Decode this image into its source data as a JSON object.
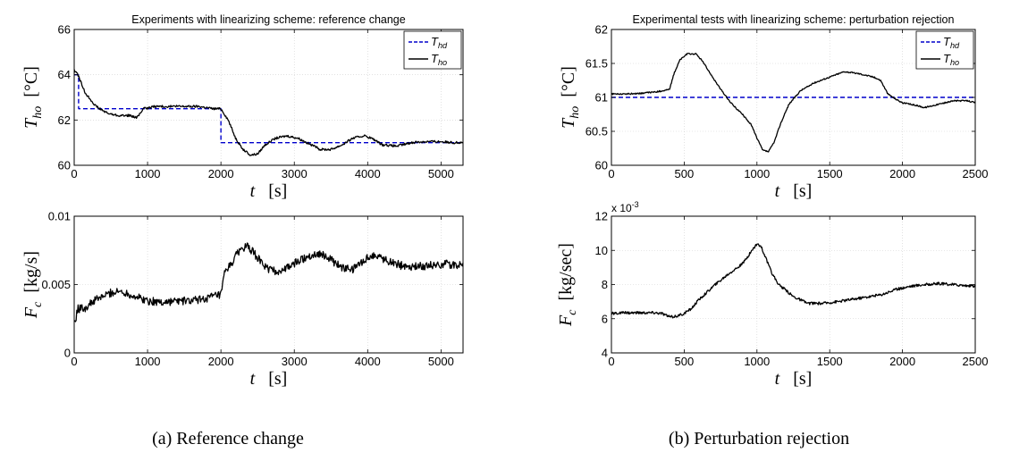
{
  "captions": {
    "a": "(a) Reference change",
    "b": "(b) Perturbation rejection"
  },
  "colors": {
    "reference": "#0000cc",
    "measured": "#000000",
    "axis": "#000000",
    "grid": "#cfcfcf",
    "background": "#ffffff"
  },
  "chart_data": [
    {
      "id": "a-top",
      "type": "line",
      "title": "Experiments with linearizing scheme: reference change",
      "xlabel": "t   [s]",
      "ylabel": "T_ho   [°C]",
      "xlim": [
        0,
        5300
      ],
      "ylim": [
        60,
        66
      ],
      "xticks": [
        0,
        1000,
        2000,
        3000,
        4000,
        5000
      ],
      "yticks": [
        60,
        62,
        64,
        66
      ],
      "grid": true,
      "legend_position": "top-right",
      "series": [
        {
          "name": "T_hd",
          "style": "dashed",
          "color_key": "reference",
          "points": [
            [
              0,
              64
            ],
            [
              60,
              64
            ],
            [
              60,
              62.5
            ],
            [
              2000,
              62.5
            ],
            [
              2000,
              61
            ],
            [
              5300,
              61
            ]
          ]
        },
        {
          "name": "T_ho",
          "style": "solid",
          "color_key": "measured",
          "noise": 0.05,
          "points": [
            [
              0,
              64.2
            ],
            [
              50,
              64
            ],
            [
              150,
              63.2
            ],
            [
              300,
              62.6
            ],
            [
              450,
              62.3
            ],
            [
              600,
              62.2
            ],
            [
              750,
              62.2
            ],
            [
              850,
              62.1
            ],
            [
              950,
              62.5
            ],
            [
              1100,
              62.6
            ],
            [
              1300,
              62.6
            ],
            [
              1500,
              62.6
            ],
            [
              1700,
              62.6
            ],
            [
              1900,
              62.5
            ],
            [
              2000,
              62.5
            ],
            [
              2100,
              62
            ],
            [
              2200,
              61.2
            ],
            [
              2300,
              60.7
            ],
            [
              2400,
              60.45
            ],
            [
              2500,
              60.5
            ],
            [
              2600,
              60.9
            ],
            [
              2750,
              61.2
            ],
            [
              2900,
              61.3
            ],
            [
              3050,
              61.2
            ],
            [
              3200,
              60.95
            ],
            [
              3350,
              60.7
            ],
            [
              3500,
              60.7
            ],
            [
              3650,
              60.9
            ],
            [
              3800,
              61.2
            ],
            [
              3950,
              61.3
            ],
            [
              4050,
              61.2
            ],
            [
              4200,
              60.9
            ],
            [
              4400,
              60.85
            ],
            [
              4600,
              61
            ],
            [
              4800,
              61.05
            ],
            [
              5000,
              61.05
            ],
            [
              5150,
              61
            ],
            [
              5300,
              61
            ]
          ]
        }
      ]
    },
    {
      "id": "a-bottom",
      "type": "line",
      "title": "",
      "xlabel": "t   [s]",
      "ylabel": "F_c   [kg/s]",
      "xlim": [
        0,
        5300
      ],
      "ylim": [
        0,
        0.01
      ],
      "xticks": [
        0,
        1000,
        2000,
        3000,
        4000,
        5000
      ],
      "yticks": [
        0,
        0.005,
        0.01
      ],
      "grid": true,
      "series": [
        {
          "name": "",
          "style": "solid",
          "color_key": "measured",
          "noise": 0.0003,
          "points": [
            [
              0,
              0.0023
            ],
            [
              30,
              0.0023
            ],
            [
              30,
              0.0032
            ],
            [
              150,
              0.0033
            ],
            [
              300,
              0.0039
            ],
            [
              500,
              0.0044
            ],
            [
              650,
              0.0045
            ],
            [
              800,
              0.0042
            ],
            [
              1000,
              0.0038
            ],
            [
              1200,
              0.0037
            ],
            [
              1400,
              0.0038
            ],
            [
              1600,
              0.0038
            ],
            [
              1800,
              0.004
            ],
            [
              1950,
              0.0042
            ],
            [
              2000,
              0.0042
            ],
            [
              2050,
              0.0058
            ],
            [
              2150,
              0.0066
            ],
            [
              2250,
              0.0075
            ],
            [
              2350,
              0.0078
            ],
            [
              2450,
              0.0073
            ],
            [
              2600,
              0.0063
            ],
            [
              2750,
              0.0059
            ],
            [
              2900,
              0.0062
            ],
            [
              3050,
              0.0067
            ],
            [
              3200,
              0.0071
            ],
            [
              3350,
              0.0073
            ],
            [
              3500,
              0.0068
            ],
            [
              3650,
              0.0062
            ],
            [
              3800,
              0.0061
            ],
            [
              3950,
              0.0068
            ],
            [
              4100,
              0.0072
            ],
            [
              4250,
              0.0068
            ],
            [
              4450,
              0.0064
            ],
            [
              4650,
              0.0063
            ],
            [
              4850,
              0.0064
            ],
            [
              5050,
              0.0065
            ],
            [
              5300,
              0.0064
            ]
          ]
        }
      ]
    },
    {
      "id": "b-top",
      "type": "line",
      "title": "Experimental tests with linearizing scheme: perturbation rejection",
      "xlabel": "t   [s]",
      "ylabel": "T_ho   [°C]",
      "xlim": [
        0,
        2500
      ],
      "ylim": [
        60,
        62
      ],
      "xticks": [
        0,
        500,
        1000,
        1500,
        2000,
        2500
      ],
      "yticks": [
        60,
        60.5,
        61,
        61.5,
        62
      ],
      "grid": true,
      "legend_position": "top-right",
      "series": [
        {
          "name": "T_hd",
          "style": "dashed",
          "color_key": "reference",
          "points": [
            [
              0,
              61
            ],
            [
              2500,
              61
            ]
          ]
        },
        {
          "name": "T_ho",
          "style": "solid",
          "color_key": "measured",
          "noise": 0.01,
          "points": [
            [
              0,
              61.05
            ],
            [
              100,
              61.05
            ],
            [
              200,
              61.06
            ],
            [
              300,
              61.08
            ],
            [
              360,
              61.1
            ],
            [
              400,
              61.12
            ],
            [
              430,
              61.35
            ],
            [
              470,
              61.55
            ],
            [
              520,
              61.64
            ],
            [
              580,
              61.64
            ],
            [
              620,
              61.55
            ],
            [
              680,
              61.35
            ],
            [
              750,
              61.12
            ],
            [
              820,
              60.92
            ],
            [
              900,
              60.75
            ],
            [
              960,
              60.6
            ],
            [
              1000,
              60.4
            ],
            [
              1040,
              60.22
            ],
            [
              1080,
              60.2
            ],
            [
              1120,
              60.35
            ],
            [
              1160,
              60.6
            ],
            [
              1220,
              60.9
            ],
            [
              1300,
              61.1
            ],
            [
              1400,
              61.22
            ],
            [
              1500,
              61.3
            ],
            [
              1600,
              61.38
            ],
            [
              1700,
              61.35
            ],
            [
              1800,
              61.3
            ],
            [
              1850,
              61.25
            ],
            [
              1900,
              61.05
            ],
            [
              1950,
              60.98
            ],
            [
              2000,
              60.92
            ],
            [
              2100,
              60.88
            ],
            [
              2150,
              60.85
            ],
            [
              2250,
              60.9
            ],
            [
              2350,
              60.95
            ],
            [
              2450,
              60.95
            ],
            [
              2500,
              60.92
            ]
          ]
        }
      ]
    },
    {
      "id": "b-bottom",
      "type": "line",
      "title": "",
      "xlabel": "t   [s]",
      "ylabel": "F_c   [kg/sec]",
      "scale_label": "x 10^-3",
      "xlim": [
        0,
        2500
      ],
      "ylim": [
        4,
        12
      ],
      "xticks": [
        0,
        500,
        1000,
        1500,
        2000,
        2500
      ],
      "yticks": [
        4,
        6,
        8,
        10,
        12
      ],
      "grid": true,
      "series": [
        {
          "name": "",
          "style": "solid",
          "color_key": "measured",
          "noise": 0.08,
          "points": [
            [
              0,
              6.3
            ],
            [
              100,
              6.35
            ],
            [
              200,
              6.35
            ],
            [
              300,
              6.35
            ],
            [
              350,
              6.3
            ],
            [
              400,
              6.1
            ],
            [
              450,
              6.15
            ],
            [
              500,
              6.3
            ],
            [
              550,
              6.6
            ],
            [
              600,
              7.1
            ],
            [
              700,
              7.9
            ],
            [
              800,
              8.6
            ],
            [
              900,
              9.2
            ],
            [
              950,
              9.8
            ],
            [
              1000,
              10.4
            ],
            [
              1030,
              10.2
            ],
            [
              1100,
              8.7
            ],
            [
              1150,
              8
            ],
            [
              1250,
              7.3
            ],
            [
              1350,
              6.9
            ],
            [
              1450,
              6.9
            ],
            [
              1550,
              7
            ],
            [
              1700,
              7.2
            ],
            [
              1850,
              7.4
            ],
            [
              1950,
              7.7
            ],
            [
              2050,
              7.9
            ],
            [
              2150,
              8
            ],
            [
              2250,
              8.05
            ],
            [
              2350,
              8
            ],
            [
              2500,
              7.9
            ]
          ]
        }
      ]
    }
  ]
}
